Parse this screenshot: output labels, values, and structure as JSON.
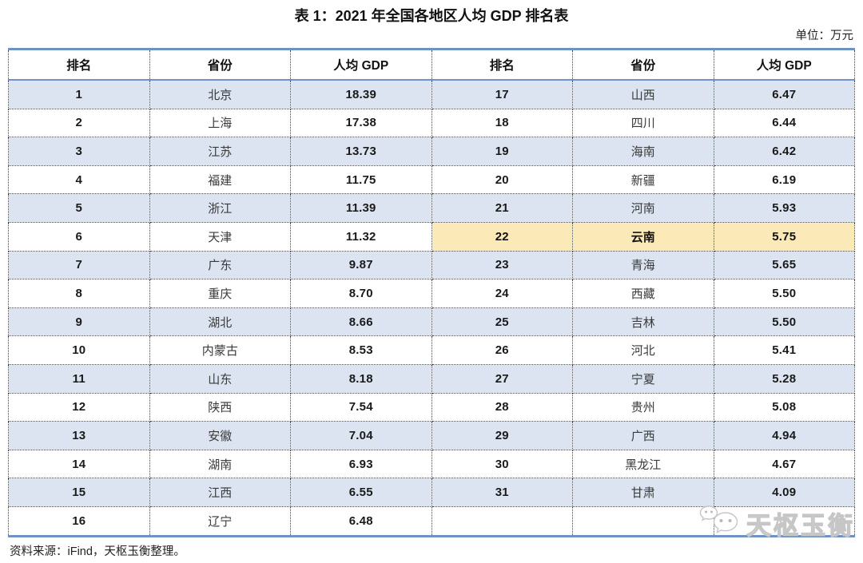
{
  "title": "表 1：2021 年全国各地区人均 GDP 排名表",
  "unit_note": "单位：万元",
  "source": "资料来源：iFind，天枢玉衡整理。",
  "watermark_text": "天枢玉衡",
  "colors": {
    "table_blue_line": "#6d92c5",
    "stripe_blue": "#dbe4f0",
    "highlight_yellow": "#fce9b8",
    "dotted_border": "#444444"
  },
  "table": {
    "headers": [
      "排名",
      "省份",
      "人均 GDP",
      "排名",
      "省份",
      "人均 GDP"
    ],
    "highlight_rank": "22",
    "rows": [
      {
        "rank": "1",
        "province": "北京",
        "gdp": "18.39",
        "rank2": "17",
        "province2": "山西",
        "gdp2": "6.47"
      },
      {
        "rank": "2",
        "province": "上海",
        "gdp": "17.38",
        "rank2": "18",
        "province2": "四川",
        "gdp2": "6.44"
      },
      {
        "rank": "3",
        "province": "江苏",
        "gdp": "13.73",
        "rank2": "19",
        "province2": "海南",
        "gdp2": "6.42"
      },
      {
        "rank": "4",
        "province": "福建",
        "gdp": "11.75",
        "rank2": "20",
        "province2": "新疆",
        "gdp2": "6.19"
      },
      {
        "rank": "5",
        "province": "浙江",
        "gdp": "11.39",
        "rank2": "21",
        "province2": "河南",
        "gdp2": "5.93"
      },
      {
        "rank": "6",
        "province": "天津",
        "gdp": "11.32",
        "rank2": "22",
        "province2": "云南",
        "gdp2": "5.75"
      },
      {
        "rank": "7",
        "province": "广东",
        "gdp": "9.87",
        "rank2": "23",
        "province2": "青海",
        "gdp2": "5.65"
      },
      {
        "rank": "8",
        "province": "重庆",
        "gdp": "8.70",
        "rank2": "24",
        "province2": "西藏",
        "gdp2": "5.50"
      },
      {
        "rank": "9",
        "province": "湖北",
        "gdp": "8.66",
        "rank2": "25",
        "province2": "吉林",
        "gdp2": "5.50"
      },
      {
        "rank": "10",
        "province": "内蒙古",
        "gdp": "8.53",
        "rank2": "26",
        "province2": "河北",
        "gdp2": "5.41"
      },
      {
        "rank": "11",
        "province": "山东",
        "gdp": "8.18",
        "rank2": "27",
        "province2": "宁夏",
        "gdp2": "5.28"
      },
      {
        "rank": "12",
        "province": "陕西",
        "gdp": "7.54",
        "rank2": "28",
        "province2": "贵州",
        "gdp2": "5.08"
      },
      {
        "rank": "13",
        "province": "安徽",
        "gdp": "7.04",
        "rank2": "29",
        "province2": "广西",
        "gdp2": "4.94"
      },
      {
        "rank": "14",
        "province": "湖南",
        "gdp": "6.93",
        "rank2": "30",
        "province2": "黑龙江",
        "gdp2": "4.67"
      },
      {
        "rank": "15",
        "province": "江西",
        "gdp": "6.55",
        "rank2": "31",
        "province2": "甘肃",
        "gdp2": "4.09"
      },
      {
        "rank": "16",
        "province": "辽宁",
        "gdp": "6.48",
        "rank2": "",
        "province2": "",
        "gdp2": ""
      }
    ]
  }
}
